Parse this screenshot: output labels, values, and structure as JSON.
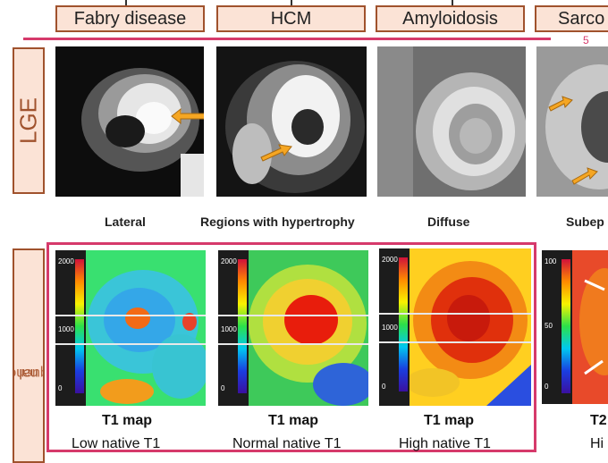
{
  "header": {
    "diseases": [
      "Fabry disease",
      "HCM",
      "Amyloidosis",
      "Sarco"
    ]
  },
  "page_number": "5",
  "rows": {
    "lge_label": "LGE",
    "functional_label_part1": "nal",
    "functional_label_part2": " sequences"
  },
  "lge_captions": [
    "Lateral",
    "Regions with hypertrophy",
    "Diffuse",
    "Subep"
  ],
  "maps": [
    {
      "title": "T1 map",
      "subtitle": "Low native T1",
      "ticks": [
        "2000",
        "1000",
        "0"
      ]
    },
    {
      "title": "T1 map",
      "subtitle": "Normal native T1",
      "ticks": [
        "2000",
        "1000",
        "0"
      ]
    },
    {
      "title": "T1 map",
      "subtitle": "High native T1",
      "ticks": [
        "2000",
        "1000",
        "0"
      ]
    },
    {
      "title": "T2",
      "subtitle": "Hi",
      "ticks": [
        "100",
        "50",
        "0"
      ]
    }
  ],
  "colors": {
    "accent_pink": "#d63a6b",
    "box_fill": "#fbe3d6",
    "box_border": "#a0522d"
  }
}
